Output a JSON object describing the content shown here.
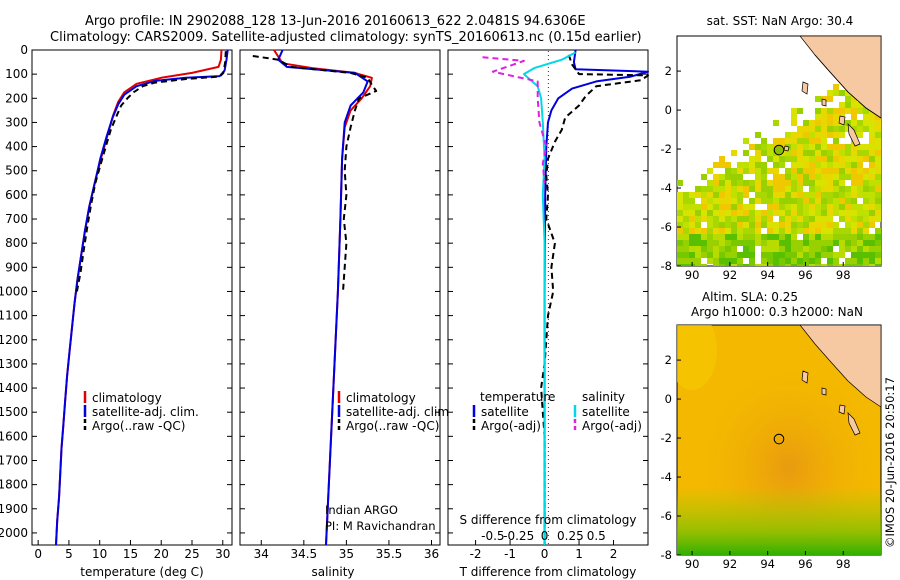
{
  "header": {
    "line1": "Argo profile: IN 2902088_128 13-Jun-2016 20160613_622 2.0481S 94.6306E",
    "line2": "Climatology: CARS2009. Satellite-adjusted climatology: synTS_20160613.nc (0.15d earlier)"
  },
  "footer_credit": "©IMOS 20-Jun-2016 20:50:17",
  "colors": {
    "climatology": "#e00000",
    "satellite": "#0000e0",
    "argo": "#000000",
    "sat_salinity": "#00d8e8",
    "argo_salinity": "#e020e0"
  },
  "chart_data": [
    {
      "id": "temperature",
      "type": "line",
      "xlabel": "temperature (deg C)",
      "xlim": [
        -1,
        31.5
      ],
      "xticks": [
        0,
        5,
        10,
        15,
        20,
        25,
        30
      ],
      "xtick_labels": [
        "0",
        "5",
        "10",
        "15",
        "20",
        "25",
        "30"
      ],
      "ylim": [
        2050,
        0
      ],
      "yticks": [
        0,
        100,
        200,
        300,
        400,
        500,
        600,
        700,
        800,
        900,
        1000,
        1100,
        1200,
        1300,
        1400,
        1500,
        1600,
        1700,
        1800,
        1900,
        2000
      ],
      "ytick_labels": [
        "0",
        "100",
        "200",
        "300",
        "400",
        "500",
        "600",
        "700",
        "800",
        "900",
        "1000",
        "1100",
        "1200",
        "1300",
        "1400",
        "1500",
        "1600",
        "1700",
        "1800",
        "1900",
        "2000"
      ],
      "legend": {
        "position": "lower-right",
        "entries": [
          "climatology",
          "satellite-adj. clim.",
          "Argo(..raw -QC)"
        ]
      },
      "series": [
        {
          "name": "climatology",
          "color": "#e00000",
          "dash": "",
          "points": [
            [
              29.8,
              0
            ],
            [
              29.7,
              40
            ],
            [
              29.3,
              70
            ],
            [
              25,
              95
            ],
            [
              20,
              115
            ],
            [
              16,
              140
            ],
            [
              14,
              175
            ],
            [
              13,
              215
            ],
            [
              12.2,
              270
            ],
            [
              11.3,
              350
            ],
            [
              10.2,
              450
            ],
            [
              9.2,
              550
            ],
            [
              8.3,
              650
            ],
            [
              7.6,
              750
            ],
            [
              7,
              850
            ],
            [
              6.4,
              950
            ],
            [
              5.9,
              1050
            ],
            [
              5.5,
              1150
            ],
            [
              5.1,
              1250
            ],
            [
              4.7,
              1350
            ],
            [
              4.4,
              1450
            ],
            [
              4.1,
              1550
            ],
            [
              3.8,
              1650
            ],
            [
              3.6,
              1750
            ],
            [
              3.4,
              1850
            ],
            [
              3.1,
              1950
            ],
            [
              2.9,
              2050
            ]
          ]
        },
        {
          "name": "satellite-adj. clim.",
          "color": "#0000e0",
          "dash": "",
          "points": [
            [
              30.8,
              0
            ],
            [
              30.6,
              40
            ],
            [
              30.3,
              85
            ],
            [
              29.5,
              108
            ],
            [
              24,
              115
            ],
            [
              19,
              128
            ],
            [
              16,
              150
            ],
            [
              14,
              185
            ],
            [
              13,
              225
            ],
            [
              12.1,
              280
            ],
            [
              11.1,
              360
            ],
            [
              10.1,
              450
            ],
            [
              9.2,
              550
            ],
            [
              8.3,
              650
            ],
            [
              7.6,
              750
            ],
            [
              7,
              850
            ],
            [
              6.4,
              950
            ],
            [
              5.9,
              1050
            ],
            [
              5.5,
              1150
            ],
            [
              5.1,
              1250
            ],
            [
              4.7,
              1350
            ],
            [
              4.4,
              1450
            ],
            [
              4.1,
              1550
            ],
            [
              3.8,
              1650
            ],
            [
              3.6,
              1750
            ],
            [
              3.4,
              1850
            ],
            [
              3.1,
              1950
            ],
            [
              2.9,
              2050
            ]
          ]
        },
        {
          "name": "Argo(..raw -QC)",
          "color": "#000000",
          "dash": "6,4",
          "points": [
            [
              30.5,
              5
            ],
            [
              30.4,
              50
            ],
            [
              30.1,
              95
            ],
            [
              29.5,
              110
            ],
            [
              24,
              120
            ],
            [
              19,
              135
            ],
            [
              17,
              150
            ],
            [
              15.5,
              175
            ],
            [
              14.5,
              200
            ],
            [
              13.5,
              230
            ],
            [
              12.8,
              270
            ],
            [
              11.8,
              330
            ],
            [
              11,
              400
            ],
            [
              10.2,
              470
            ],
            [
              9.3,
              550
            ],
            [
              8.6,
              640
            ],
            [
              8,
              730
            ],
            [
              7.4,
              830
            ],
            [
              6.9,
              920
            ],
            [
              6.3,
              1000
            ]
          ]
        }
      ]
    },
    {
      "id": "salinity",
      "type": "line",
      "xlabel": "salinity",
      "xlim": [
        33.75,
        36.1
      ],
      "xticks": [
        34,
        34.5,
        35,
        35.5,
        36
      ],
      "xtick_labels": [
        "34",
        "34.5",
        "35",
        "35.5",
        "36"
      ],
      "ylim": [
        2050,
        0
      ],
      "legend": {
        "position": "lower-right",
        "entries": [
          "climatology",
          "satellite-adj. clim.",
          "Argo(..raw -QC)"
        ]
      },
      "annotation": [
        "Indian ARGO",
        "PI: M Ravichandran"
      ],
      "series": [
        {
          "name": "climatology",
          "color": "#e00000",
          "dash": "",
          "points": [
            [
              34.15,
              0
            ],
            [
              34.25,
              55
            ],
            [
              34.6,
              75
            ],
            [
              35.1,
              95
            ],
            [
              35.3,
              115
            ],
            [
              35.28,
              150
            ],
            [
              35.18,
              200
            ],
            [
              35.05,
              250
            ],
            [
              34.98,
              320
            ],
            [
              34.95,
              450
            ],
            [
              34.93,
              700
            ],
            [
              34.9,
              1000
            ],
            [
              34.86,
              1300
            ],
            [
              34.82,
              1600
            ],
            [
              34.78,
              1900
            ],
            [
              34.76,
              2050
            ]
          ]
        },
        {
          "name": "satellite-adj. clim.",
          "color": "#0000e0",
          "dash": "",
          "points": [
            [
              34.25,
              0
            ],
            [
              34.2,
              40
            ],
            [
              34.3,
              70
            ],
            [
              35.1,
              95
            ],
            [
              35.25,
              130
            ],
            [
              35.2,
              175
            ],
            [
              35.05,
              230
            ],
            [
              34.98,
              300
            ],
            [
              34.95,
              450
            ],
            [
              34.93,
              700
            ],
            [
              34.9,
              1000
            ],
            [
              34.86,
              1300
            ],
            [
              34.82,
              1600
            ],
            [
              34.78,
              1900
            ],
            [
              34.76,
              2050
            ]
          ]
        },
        {
          "name": "Argo(..raw -QC)",
          "color": "#000000",
          "dash": "6,4",
          "points": [
            [
              33.9,
              25
            ],
            [
              34.2,
              40
            ],
            [
              34.35,
              70
            ],
            [
              35.05,
              95
            ],
            [
              35.25,
              115
            ],
            [
              35.3,
              145
            ],
            [
              35.35,
              170
            ],
            [
              35.15,
              200
            ],
            [
              35.1,
              250
            ],
            [
              35.05,
              320
            ],
            [
              35.0,
              400
            ],
            [
              34.98,
              500
            ],
            [
              35.0,
              600
            ],
            [
              34.97,
              700
            ],
            [
              35.0,
              800
            ],
            [
              34.98,
              900
            ],
            [
              34.96,
              1000
            ]
          ]
        }
      ]
    },
    {
      "id": "difference",
      "type": "line",
      "xlabel": "T difference from climatology",
      "xlim": [
        -2.8,
        3.0
      ],
      "xticks": [
        -2,
        -1,
        0,
        1,
        2
      ],
      "xtick_labels": [
        "-2",
        "-1",
        "0",
        "1",
        "2"
      ],
      "top_axis_label": "S difference from climatology",
      "top_ticks": [
        -1.5,
        -0.75,
        0,
        0.75,
        1.5
      ],
      "top_tick_labels": [
        "-0.5",
        "-0.25",
        "0",
        "0.25",
        "0.5"
      ],
      "ylim": [
        2050,
        0
      ],
      "legend": {
        "position": "lower",
        "groups": [
          {
            "title": "temperature",
            "entries": [
              "satellite",
              "Argo(-adj)"
            ]
          },
          {
            "title": "salinity",
            "entries": [
              "satellite",
              "Argo(-adj)"
            ]
          }
        ]
      },
      "series": [
        {
          "name": "temperature satellite",
          "color": "#0000e0",
          "dash": "",
          "points": [
            [
              0.9,
              0
            ],
            [
              0.85,
              50
            ],
            [
              0.9,
              80
            ],
            [
              3,
              90
            ],
            [
              2.5,
              110
            ],
            [
              1.5,
              130
            ],
            [
              0.8,
              160
            ],
            [
              0.4,
              200
            ],
            [
              0.2,
              250
            ],
            [
              0.1,
              300
            ],
            [
              0.05,
              400
            ],
            [
              0.02,
              600
            ],
            [
              0,
              1000
            ],
            [
              0,
              2050
            ]
          ]
        },
        {
          "name": "temperature Argo(-adj)",
          "color": "#000000",
          "dash": "6,4",
          "points": [
            [
              0.7,
              20
            ],
            [
              0.8,
              60
            ],
            [
              1.0,
              100
            ],
            [
              3,
              105
            ],
            [
              2.8,
              125
            ],
            [
              1.5,
              150
            ],
            [
              1.2,
              190
            ],
            [
              1.0,
              230
            ],
            [
              0.6,
              280
            ],
            [
              0.5,
              330
            ],
            [
              0.3,
              380
            ],
            [
              0.1,
              450
            ],
            [
              0.05,
              520
            ],
            [
              0.1,
              600
            ],
            [
              0.05,
              700
            ],
            [
              0.3,
              800
            ],
            [
              0.2,
              900
            ],
            [
              0.25,
              1000
            ],
            [
              0.1,
              1100
            ],
            [
              0.05,
              1200
            ],
            [
              0,
              1300
            ],
            [
              -0.1,
              1400
            ],
            [
              -0.05,
              1500
            ],
            [
              0,
              1600
            ],
            [
              0,
              1800
            ],
            [
              0,
              2050
            ]
          ]
        },
        {
          "name": "salinity satellite",
          "color": "#00d8e8",
          "dash": "",
          "points": [
            [
              0.9,
              10
            ],
            [
              0.5,
              40
            ],
            [
              -0.3,
              75
            ],
            [
              -0.6,
              100
            ],
            [
              -0.2,
              150
            ],
            [
              -0.1,
              200
            ],
            [
              -0.05,
              300
            ],
            [
              0,
              450
            ],
            [
              -0.05,
              600
            ],
            [
              0,
              800
            ],
            [
              0,
              1000
            ],
            [
              0,
              1300
            ],
            [
              0,
              2050
            ]
          ]
        },
        {
          "name": "salinity Argo(-adj)",
          "color": "#e020e0",
          "dash": "6,4",
          "points": [
            [
              -1.8,
              30
            ],
            [
              -0.6,
              45
            ],
            [
              -1.5,
              90
            ],
            [
              -0.2,
              130
            ],
            [
              -0.2,
              200
            ],
            [
              -0.15,
              300
            ],
            [
              -0.05,
              350
            ],
            [
              0.05,
              400
            ],
            [
              -0.05,
              470
            ],
            [
              0,
              550
            ]
          ]
        }
      ]
    },
    {
      "id": "sst_map",
      "type": "heatmap",
      "title": "sat. SST: NaN Argo: 30.4",
      "xlim": [
        89.2,
        100.0
      ],
      "ylim": [
        -8,
        3.8
      ],
      "xticks": [
        90,
        92,
        94,
        96,
        98
      ],
      "xtick_labels": [
        "90",
        "92",
        "94",
        "96",
        "98"
      ],
      "yticks": [
        2,
        0,
        -2,
        -4,
        -6,
        -8
      ],
      "ytick_labels": [
        "2",
        "0",
        "-2",
        "-4",
        "-6",
        "-8"
      ],
      "float_position": [
        94.6,
        -2.05
      ]
    },
    {
      "id": "sla_map",
      "type": "heatmap",
      "title_lines": [
        "Altim. SLA: 0.25",
        "Argo h1000: 0.3 h2000: NaN"
      ],
      "xlim": [
        89.2,
        100.0
      ],
      "ylim": [
        -8,
        3.8
      ],
      "xticks": [
        90,
        92,
        94,
        96,
        98
      ],
      "xtick_labels": [
        "90",
        "92",
        "94",
        "96",
        "98"
      ],
      "yticks": [
        2,
        0,
        -2,
        -4,
        -6,
        -8
      ],
      "ytick_labels": [
        "2",
        "0",
        "-2",
        "-4",
        "-6",
        "-8"
      ],
      "float_position": [
        94.6,
        -2.05
      ]
    }
  ]
}
